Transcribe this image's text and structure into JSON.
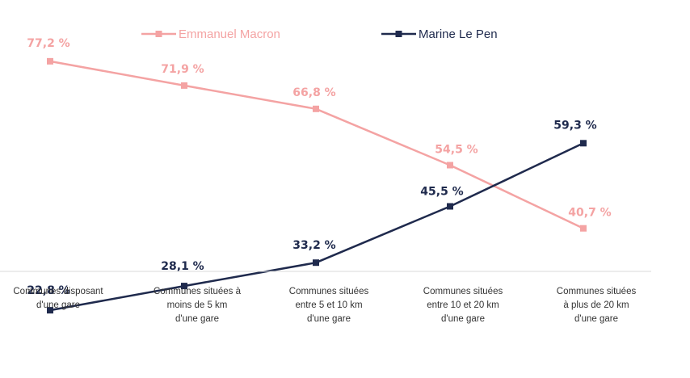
{
  "chart_data": {
    "type": "line",
    "categories": [
      [
        "Communes disposant",
        "d'une gare"
      ],
      [
        "Communes situées à",
        "moins de 5 km",
        "d'une gare"
      ],
      [
        "Communes situées",
        "entre 5 et 10 km",
        "d'une gare"
      ],
      [
        "Communes situées",
        "entre 10 et 20 km",
        "d'une gare"
      ],
      [
        "Communes situées",
        "à plus de 20 km",
        "d'une gare"
      ]
    ],
    "series": [
      {
        "name": "Emmanuel Macron",
        "color": "#f4a3a3",
        "values": [
          77.2,
          71.9,
          66.8,
          54.5,
          40.7
        ],
        "labels": [
          "77,2 %",
          "71,9 %",
          "66,8 %",
          "54,5 %",
          "40,7 %"
        ]
      },
      {
        "name": "Marine Le Pen",
        "color": "#1f2a4d",
        "values": [
          22.8,
          28.1,
          33.2,
          45.5,
          59.3
        ],
        "labels": [
          "22,8 %",
          "28,1 %",
          "33,2 %",
          "45,5 %",
          "59,3 %"
        ]
      }
    ],
    "ylim": [
      20,
      80
    ],
    "grid": false,
    "legend": "top-center",
    "marker": "square"
  }
}
